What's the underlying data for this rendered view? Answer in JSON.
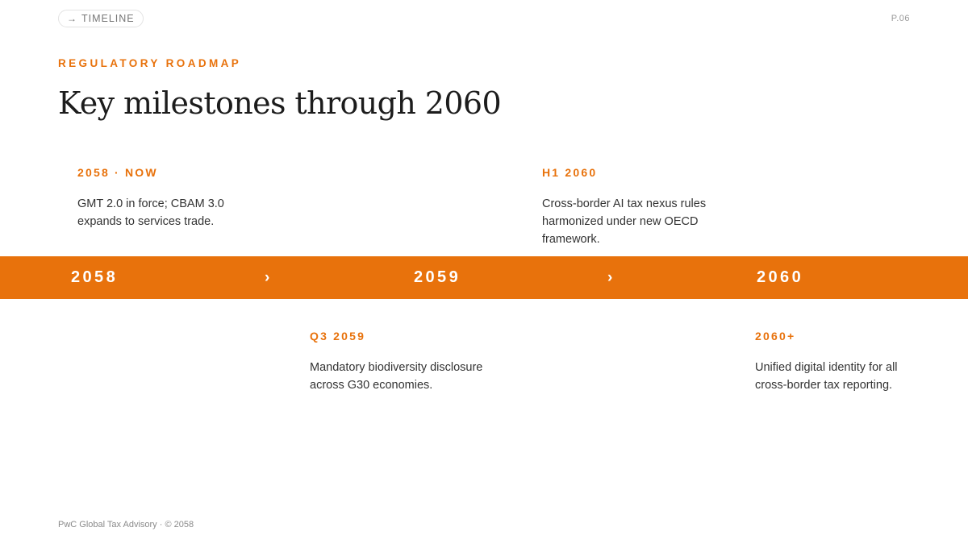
{
  "header": {
    "section_label": "TIMELINE",
    "page_number": "P.06"
  },
  "eyebrow": "REGULATORY ROADMAP",
  "title": "Key milestones through 2060",
  "milestones": [
    {
      "label": "2058 · NOW",
      "text": "GMT 2.0 in force; CBAM 3.0 expands to services trade."
    },
    {
      "label": "H1 2060",
      "text": "Cross-border AI tax nexus rules harmonized under new OECD framework."
    },
    {
      "label": "Q3 2059",
      "text": "Mandatory biodiversity disclosure across G30 economies."
    },
    {
      "label": "2060+",
      "text": "Unified digital identity for all cross-border tax reporting."
    }
  ],
  "band": {
    "years": [
      "2058",
      "2059",
      "2060"
    ],
    "separator": "›"
  },
  "footer": "PwC Global Tax Advisory · © 2058",
  "colors": {
    "accent": "#e8720c",
    "background": "#ffffff",
    "title": "#1c1c1c"
  },
  "icons": {
    "section_pill": "arrow-right-icon"
  }
}
